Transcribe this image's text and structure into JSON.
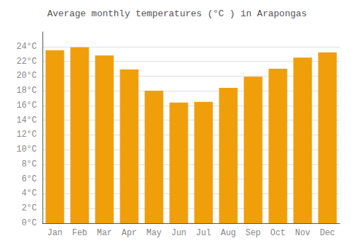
{
  "chart_data": {
    "type": "bar",
    "title": "Average monthly temperatures (°C ) in Arapongas",
    "categories": [
      "Jan",
      "Feb",
      "Mar",
      "Apr",
      "May",
      "Jun",
      "Jul",
      "Aug",
      "Sep",
      "Oct",
      "Nov",
      "Dec"
    ],
    "values": [
      23.5,
      23.9,
      22.8,
      20.9,
      18.0,
      16.4,
      16.5,
      18.4,
      19.9,
      21.0,
      22.5,
      23.2
    ],
    "color": "#F09E0A",
    "ylim": [
      0,
      26
    ],
    "yticks": [
      {
        "value": 0,
        "label": "0°C"
      },
      {
        "value": 2,
        "label": "2°C"
      },
      {
        "value": 4,
        "label": "4°C"
      },
      {
        "value": 6,
        "label": "6°C"
      },
      {
        "value": 8,
        "label": "8°C"
      },
      {
        "value": 10,
        "label": "10°C"
      },
      {
        "value": 12,
        "label": "12°C"
      },
      {
        "value": 14,
        "label": "14°C"
      },
      {
        "value": 16,
        "label": "16°C"
      },
      {
        "value": 18,
        "label": "18°C"
      },
      {
        "value": 20,
        "label": "20°C"
      },
      {
        "value": 22,
        "label": "22°C"
      },
      {
        "value": 24,
        "label": "24°C"
      }
    ],
    "grid": true
  }
}
